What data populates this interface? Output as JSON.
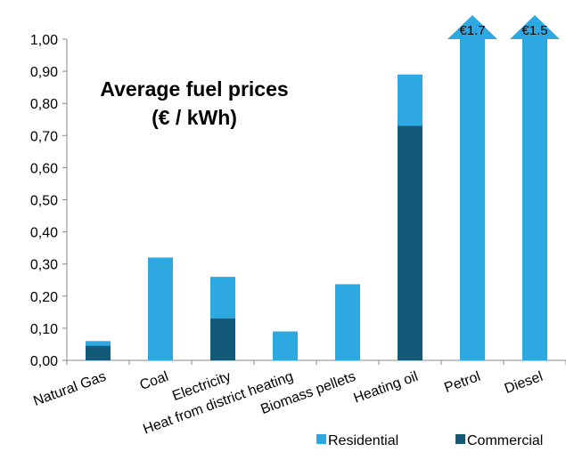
{
  "chart_data": {
    "type": "bar",
    "title": "Average fuel prices",
    "subtitle": "(€ / kWh)",
    "categories": [
      "Natural Gas",
      "Coal",
      "Electricity",
      "Heat from district heating",
      "Biomass pellets",
      "Heating oil",
      "Petrol",
      "Diesel"
    ],
    "series": [
      {
        "name": "Residential",
        "color": "#2ea8e0",
        "values": [
          0.06,
          0.32,
          0.26,
          0.09,
          0.237,
          0.89,
          1.7,
          1.5
        ],
        "value_labels": [
          null,
          null,
          null,
          null,
          null,
          null,
          "€1.7",
          "€1.5"
        ]
      },
      {
        "name": "Commercial",
        "color": "#135a78",
        "values": [
          0.045,
          null,
          0.13,
          null,
          null,
          0.73,
          null,
          null
        ]
      }
    ],
    "ylim": [
      0,
      1
    ],
    "yticks": [
      {
        "value": 0,
        "label": "0,00"
      },
      {
        "value": 0.1,
        "label": "0,10"
      },
      {
        "value": 0.2,
        "label": "0,20"
      },
      {
        "value": 0.3,
        "label": "0,30"
      },
      {
        "value": 0.4,
        "label": "0,40"
      },
      {
        "value": 0.5,
        "label": "0,50"
      },
      {
        "value": 0.6,
        "label": "0,60"
      },
      {
        "value": 0.7,
        "label": "0,70"
      },
      {
        "value": 0.8,
        "label": "0,80"
      },
      {
        "value": 0.9,
        "label": "0,90"
      },
      {
        "value": 1,
        "label": "1,00"
      }
    ],
    "legend": "bottom-right"
  }
}
